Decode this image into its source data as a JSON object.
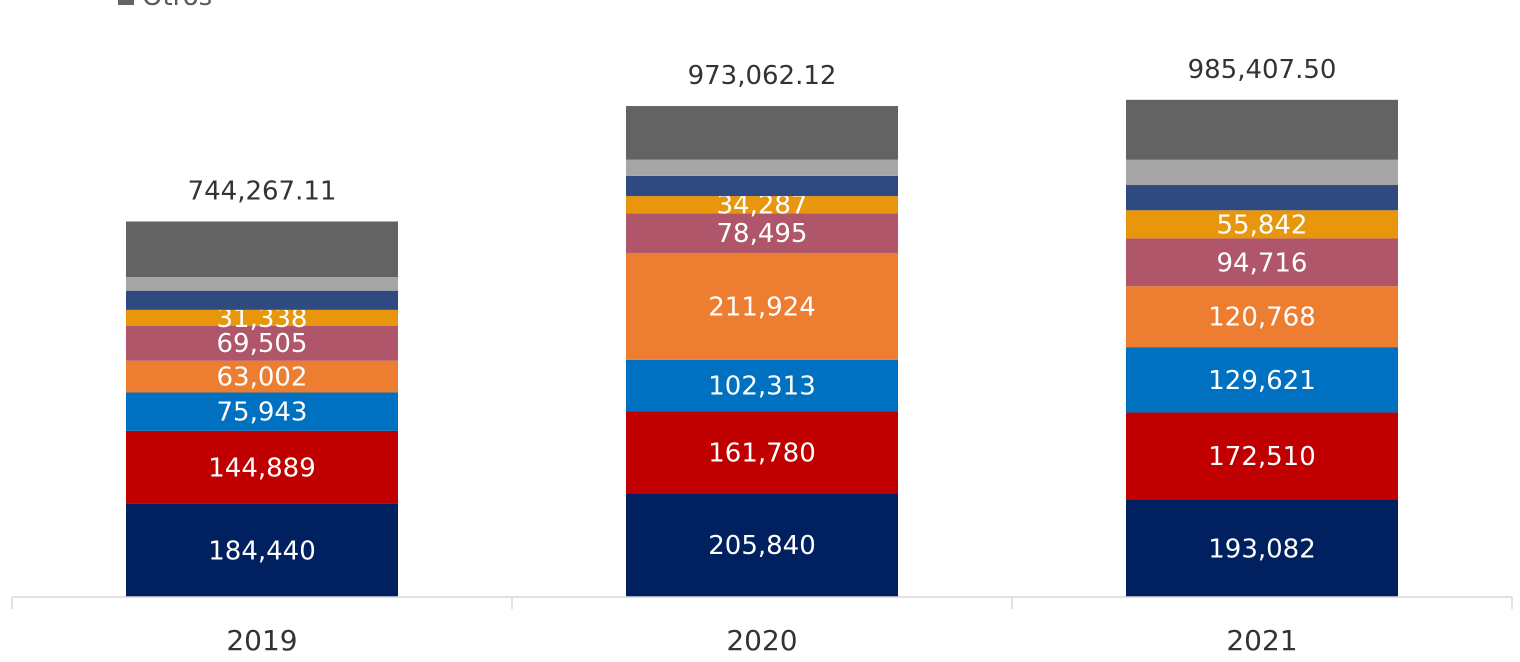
{
  "chart_data": {
    "type": "bar",
    "stacked": true,
    "categories": [
      "2019",
      "2020",
      "2021"
    ],
    "totals": [
      "744,267.11",
      "973,062.12",
      "985,407.50"
    ],
    "total_values": [
      744267.11,
      973062.12,
      985407.5
    ],
    "series": [
      {
        "color": "#002060",
        "values": [
          184440,
          205840,
          193082
        ],
        "labels": [
          "184,440",
          "205,840",
          "193,082"
        ]
      },
      {
        "color": "#C00000",
        "values": [
          144889,
          161780,
          172510
        ],
        "labels": [
          "144,889",
          "161,780",
          "172,510"
        ]
      },
      {
        "color": "#0070C0",
        "values": [
          75943,
          102313,
          129621
        ],
        "labels": [
          "75,943",
          "102,313",
          "129,621"
        ]
      },
      {
        "color": "#ED7D31",
        "values": [
          63002,
          211924,
          120768
        ],
        "labels": [
          "63,002",
          "211,924",
          "120,768"
        ]
      },
      {
        "color": "#B0566B",
        "values": [
          69505,
          78495,
          94716
        ],
        "labels": [
          "69,505",
          "78,495",
          "94,716"
        ]
      },
      {
        "color": "#E8960C",
        "values": [
          31338,
          34287,
          55842
        ],
        "labels": [
          "31,338",
          "34,287",
          "55,842"
        ]
      },
      {
        "color": "#2E4A80",
        "values": [
          38000,
          40000,
          50000
        ],
        "labels": [
          "",
          "",
          ""
        ]
      },
      {
        "color": "#A6A6A6",
        "values": [
          27000,
          32000,
          50000
        ],
        "labels": [
          "",
          "",
          ""
        ]
      },
      {
        "name": "Otros",
        "color": "#636363",
        "values": [
          110150,
          106423,
          118869
        ],
        "labels": [
          "",
          "",
          ""
        ]
      }
    ],
    "ylim": [
      0,
      1100000
    ],
    "grid": false,
    "legend": {
      "position": "top-left",
      "visible_entries": [
        "Otros"
      ]
    }
  }
}
